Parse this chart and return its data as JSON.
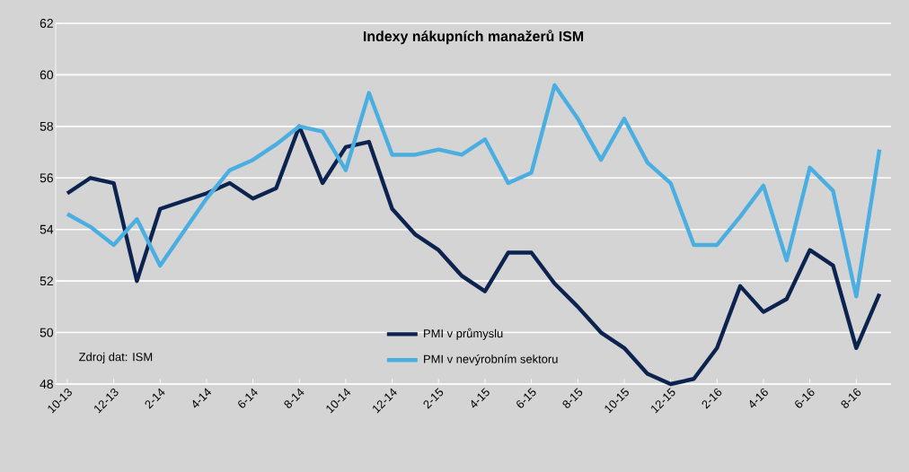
{
  "chart_data": {
    "type": "line",
    "title": "Indexy nákupních manažerů ISM",
    "categories": [
      "10-13",
      null,
      "12-13",
      null,
      "2-14",
      null,
      "4-14",
      null,
      "6-14",
      null,
      "8-14",
      null,
      "10-14",
      null,
      "12-14",
      null,
      "2-15",
      null,
      "4-15",
      null,
      "6-15",
      null,
      "8-15",
      null,
      "10-15",
      null,
      "12-15",
      null,
      "2-16",
      null,
      "4-16",
      null,
      "6-16",
      null,
      "8-16",
      null
    ],
    "series": [
      {
        "name": "PMI v průmyslu",
        "color": "#0c2350",
        "values": [
          55.4,
          56.0,
          55.8,
          52.0,
          54.8,
          55.1,
          55.4,
          55.8,
          55.2,
          55.6,
          58.0,
          55.8,
          57.2,
          57.4,
          54.8,
          53.8,
          53.2,
          52.2,
          51.6,
          53.1,
          53.1,
          51.9,
          51.0,
          50.0,
          49.4,
          48.4,
          48.0,
          48.2,
          49.4,
          51.8,
          50.8,
          51.3,
          53.2,
          52.6,
          49.4,
          51.5
        ]
      },
      {
        "name": "PMI v nevýrobním sektoru",
        "color": "#4aaee0",
        "values": [
          54.6,
          54.1,
          53.4,
          54.4,
          52.6,
          53.9,
          55.2,
          56.3,
          56.7,
          57.3,
          58.0,
          57.8,
          56.3,
          59.3,
          56.9,
          56.9,
          57.1,
          56.9,
          57.5,
          55.8,
          56.2,
          59.6,
          58.3,
          56.7,
          58.3,
          56.6,
          55.8,
          53.4,
          53.4,
          54.5,
          55.7,
          52.8,
          56.4,
          55.5,
          51.4,
          57.1
        ]
      }
    ],
    "ylim": [
      48,
      62
    ],
    "yticks": [
      48,
      50,
      52,
      54,
      56,
      58,
      60,
      62
    ],
    "grid": "y",
    "legend": "bottom",
    "annotations": [
      "Zdroj dat: ISM"
    ]
  }
}
